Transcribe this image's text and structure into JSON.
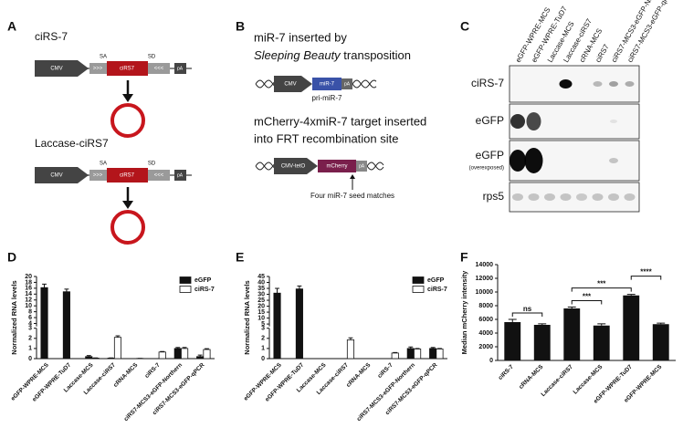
{
  "panel_a": {
    "label": "A",
    "constructs": [
      {
        "name": "ciRS-7",
        "promoter": "CMV",
        "left_repeat": ">>>",
        "splice_acceptor": "SA",
        "insert": "ciRS7",
        "splice_donor": "SD",
        "right_repeat": "<<<",
        "polya": "pA"
      },
      {
        "name": "Laccase-ciRS7",
        "promoter": "CMV",
        "left_repeat": ">>>",
        "splice_acceptor": "SA",
        "insert": "ciRS7",
        "splice_donor": "SD",
        "right_repeat": "<<<",
        "polya": "pA"
      }
    ]
  },
  "panel_b": {
    "label": "B",
    "constructs": [
      {
        "caption_line1": "miR-7 inserted by",
        "caption_italic": "Sleeping Beauty",
        "caption_line2": " transposition",
        "promoter": "CMV",
        "insert": "miR-7",
        "polya": "pA",
        "transcript": "pri-miR-7"
      },
      {
        "caption_line1": "mCherry-4xmiR-7 target inserted",
        "caption_line2": "into FRT recombination site",
        "promoter": "CMV-tetO",
        "insert": "mCherry",
        "polya": "pA",
        "note": "Four miR-7 seed matches"
      }
    ]
  },
  "panel_c": {
    "label": "C",
    "lanes": [
      "eGFP-WPRE-MCS",
      "eGFP-WPRE-TuD7",
      "Laccase-MCS",
      "Laccase-ciRS7",
      "cRNA-MCS",
      "ciRS7",
      "ciRS7-MCS3-eGFP-Northern",
      "ciRS7-MCS3-eGFP-qPCR"
    ],
    "rows": [
      {
        "name": "ciRS-7"
      },
      {
        "name": "eGFP"
      },
      {
        "name": "eGFP",
        "note": "(overexposed)"
      },
      {
        "name": "rps5"
      }
    ]
  },
  "chart_data": [
    {
      "panel": "D",
      "type": "broken_bar",
      "ylabel": "Normalized RNA levels",
      "categories": [
        "eGFP-WPRE-MCS",
        "eGFP-WPRE-TuD7",
        "Laccase-MCS",
        "Laccase-ciRS7",
        "cRNA-MCS",
        "ciRS-7",
        "ciRS7-MCS3-eGFP-Northern",
        "ciRS7-MCS3-eGFP-qPCR"
      ],
      "series": [
        {
          "name": "eGFP",
          "color": "#111111",
          "values": [
            16.2,
            14.8,
            0.2,
            0.05,
            0,
            0,
            1.0,
            0.2
          ],
          "errors": [
            1.2,
            0.9,
            0.1,
            0.02,
            0,
            0,
            0.1,
            0.15
          ]
        },
        {
          "name": "ciRS-7",
          "color": "#ffffff",
          "values": [
            0,
            0,
            0.05,
            2.1,
            0.02,
            0.65,
            1.0,
            0.9
          ],
          "errors": [
            0,
            0,
            0.02,
            0.15,
            0,
            0.05,
            0.1,
            0.08
          ]
        }
      ],
      "ylim_lower": [
        0,
        3
      ],
      "ylim_upper": [
        3,
        20
      ],
      "yticks_lower": [
        0,
        1,
        2,
        3
      ],
      "yticks_upper": [
        4,
        6,
        8,
        10,
        12,
        14,
        16,
        18,
        20
      ],
      "legend": "upper right"
    },
    {
      "panel": "E",
      "type": "broken_bar",
      "ylabel": "Normalized RNA levels",
      "categories": [
        "eGFP-WPRE-MCS",
        "eGFP-WPRE-TuD7",
        "Laccase-MCS",
        "Laccase-ciRS7",
        "cRNA-MCS",
        "ciRS-7",
        "ciRS7-MCS3-eGFP-Northern",
        "ciRS7-MCS3-eGFP-qPCR"
      ],
      "series": [
        {
          "name": "eGFP",
          "color": "#111111",
          "values": [
            31,
            34.5,
            0,
            0,
            0,
            0,
            1.0,
            1.0
          ],
          "errors": [
            4,
            2.5,
            0,
            0,
            0,
            0,
            0.15,
            0.1
          ]
        },
        {
          "name": "ciRS-7",
          "color": "#ffffff",
          "values": [
            0,
            0,
            0,
            1.85,
            0,
            0.55,
            0.95,
            0.95
          ],
          "errors": [
            0,
            0,
            0,
            0.2,
            0,
            0.05,
            0.05,
            0.05
          ]
        }
      ],
      "ylim_lower": [
        0,
        3
      ],
      "ylim_upper": [
        3,
        45
      ],
      "yticks_lower": [
        0,
        1,
        2,
        3
      ],
      "yticks_upper": [
        5,
        10,
        15,
        20,
        25,
        30,
        35,
        40,
        45
      ],
      "legend": "upper right"
    },
    {
      "panel": "F",
      "type": "bar",
      "ylabel": "Median mCherry intensity",
      "categories": [
        "ciRS-7",
        "cRNA-MCS",
        "Laccase-ciRS7",
        "Laccase-MCS",
        "eGFP-WPRE-TuD7",
        "eGFP-WPRE-MCS"
      ],
      "values": [
        5600,
        5200,
        7600,
        5100,
        9500,
        5300
      ],
      "errors": [
        400,
        150,
        200,
        250,
        150,
        150
      ],
      "color": "#111111",
      "ylim": [
        0,
        14000
      ],
      "yticks": [
        0,
        2000,
        4000,
        6000,
        8000,
        10000,
        12000,
        14000
      ],
      "significance": [
        {
          "pair": [
            0,
            1
          ],
          "label": "ns"
        },
        {
          "pair": [
            2,
            3
          ],
          "label": "***"
        },
        {
          "pair": [
            2,
            4
          ],
          "label": "***"
        },
        {
          "pair": [
            4,
            5
          ],
          "label": "****"
        }
      ]
    }
  ]
}
